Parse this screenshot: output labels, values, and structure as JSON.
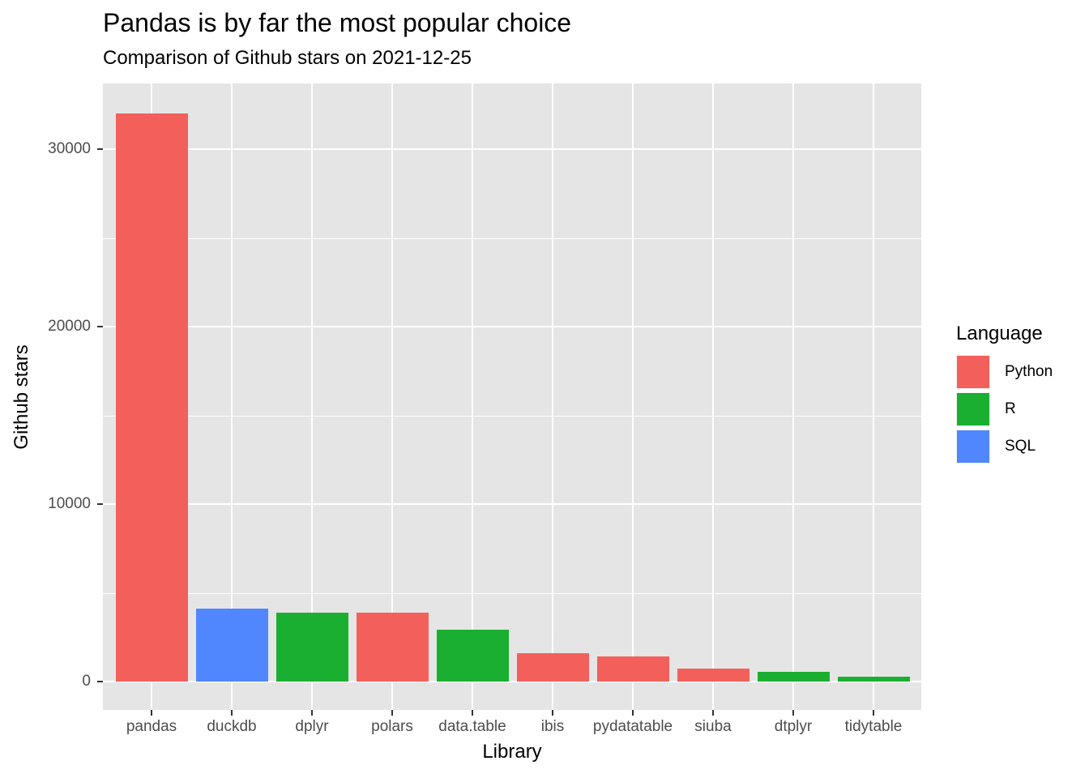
{
  "title": "Pandas is by far the most popular choice",
  "subtitle": "Comparison of Github stars on 2021-12-25",
  "xlabel": "Library",
  "ylabel": "Github stars",
  "colors": {
    "Python": "#f3605b",
    "R": "#1aaf30",
    "SQL": "#5087fe",
    "panel_bg": "#e5e5e5",
    "grid": "#ffffff"
  },
  "yticks": [
    "0",
    "10000",
    "20000",
    "30000"
  ],
  "legend": {
    "title": "Language",
    "items": [
      {
        "label": "Python",
        "color": "#f3605b"
      },
      {
        "label": "R",
        "color": "#1aaf30"
      },
      {
        "label": "SQL",
        "color": "#5087fe"
      }
    ]
  },
  "chart_data": {
    "type": "bar",
    "title": "Pandas is by far the most popular choice",
    "subtitle": "Comparison of Github stars on 2021-12-25",
    "xlabel": "Library",
    "ylabel": "Github stars",
    "categories": [
      "pandas",
      "duckdb",
      "dplyr",
      "polars",
      "data.table",
      "ibis",
      "pydatatable",
      "siuba",
      "dtplyr",
      "tidytable"
    ],
    "values": [
      32000,
      4100,
      3900,
      3900,
      2900,
      1600,
      1400,
      730,
      550,
      270
    ],
    "language": [
      "Python",
      "SQL",
      "R",
      "Python",
      "R",
      "Python",
      "Python",
      "Python",
      "R",
      "R"
    ],
    "ylim": [
      -1600,
      33700
    ],
    "yticks": [
      0,
      10000,
      20000,
      30000
    ],
    "grid": true,
    "legend_position": "right",
    "legend_title": "Language"
  }
}
